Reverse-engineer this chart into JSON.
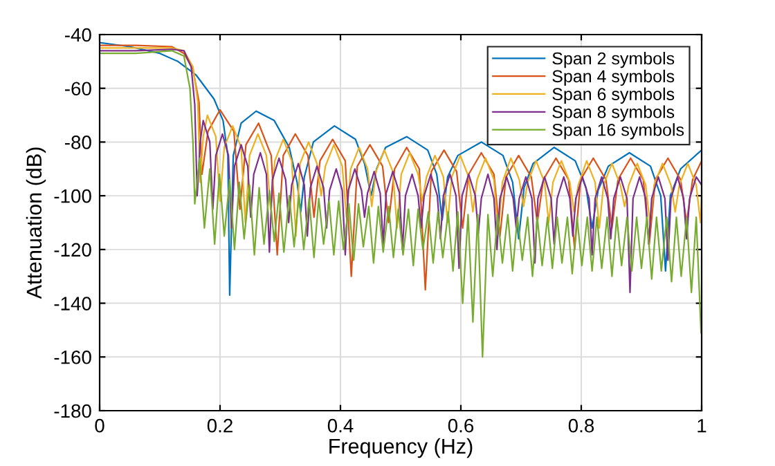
{
  "chart_data": {
    "type": "line",
    "xlabel": "Frequency (Hz)",
    "ylabel": "Attenuation (dB)",
    "xlim": [
      0,
      1
    ],
    "xticks": [
      0,
      0.2,
      0.4,
      0.6,
      0.8,
      1
    ],
    "ylim": [
      -180,
      -40
    ],
    "yticks": [
      -180,
      -160,
      -140,
      -120,
      -100,
      -80,
      -60,
      -40
    ],
    "grid": true,
    "legend": "top right",
    "line_style": "solid",
    "marker": "none",
    "series": [
      {
        "name": "Span 2 symbols",
        "color": "#0072bd",
        "x": [
          0,
          0.05,
          0.1,
          0.13,
          0.16,
          0.19,
          0.205,
          0.213,
          0.216,
          0.222,
          0.235,
          0.26,
          0.29,
          0.315,
          0.328,
          0.334,
          0.34,
          0.355,
          0.39,
          0.425,
          0.44,
          0.451,
          0.46,
          0.475,
          0.51,
          0.545,
          0.56,
          0.569,
          0.578,
          0.595,
          0.634,
          0.67,
          0.686,
          0.696,
          0.705,
          0.72,
          0.755,
          0.79,
          0.808,
          0.818,
          0.828,
          0.845,
          0.88,
          0.915,
          0.932,
          0.94,
          0.948,
          0.965,
          1.0
        ],
        "values": [
          -43,
          -44.5,
          -47,
          -50,
          -55,
          -64,
          -72,
          -85,
          -137,
          -85,
          -73,
          -68.5,
          -72,
          -82,
          -95,
          -106,
          -93,
          -80,
          -74,
          -79,
          -88,
          -100,
          -90,
          -82,
          -78,
          -83,
          -92,
          -109,
          -93,
          -85,
          -80,
          -85,
          -95,
          -116,
          -97,
          -88,
          -82,
          -87,
          -97,
          -112,
          -98,
          -89,
          -84,
          -89,
          -100,
          -128,
          -100,
          -90,
          -83
        ]
      },
      {
        "name": "Span 4 symbols",
        "color": "#d95319",
        "x": [
          0,
          0.06,
          0.12,
          0.14,
          0.155,
          0.165,
          0.17,
          0.18,
          0.2,
          0.223,
          0.233,
          0.243,
          0.264,
          0.285,
          0.295,
          0.305,
          0.325,
          0.346,
          0.356,
          0.366,
          0.387,
          0.408,
          0.418,
          0.428,
          0.449,
          0.47,
          0.48,
          0.49,
          0.51,
          0.531,
          0.541,
          0.551,
          0.572,
          0.593,
          0.603,
          0.613,
          0.634,
          0.655,
          0.665,
          0.675,
          0.696,
          0.717,
          0.727,
          0.737,
          0.758,
          0.779,
          0.789,
          0.799,
          0.82,
          0.841,
          0.851,
          0.861,
          0.882,
          0.903,
          0.913,
          0.923,
          0.944,
          0.965,
          0.975,
          0.985,
          1.0
        ],
        "values": [
          -44,
          -44,
          -44.5,
          -47,
          -53,
          -65,
          -92,
          -76,
          -68,
          -76,
          -105,
          -81,
          -73,
          -85,
          -122,
          -85,
          -77,
          -85,
          -108,
          -87,
          -79,
          -87,
          -130,
          -89,
          -81,
          -89,
          -110,
          -90,
          -82,
          -90,
          -135,
          -91,
          -83,
          -91,
          -112,
          -92,
          -84,
          -92,
          -115,
          -93,
          -85,
          -93,
          -110,
          -94,
          -86,
          -94,
          -120,
          -94,
          -86,
          -94,
          -112,
          -94,
          -86,
          -94,
          -118,
          -94,
          -86,
          -94,
          -110,
          -94,
          -87
        ]
      },
      {
        "name": "Span 6 symbols",
        "color": "#edb120",
        "x": [
          0,
          0.06,
          0.12,
          0.14,
          0.155,
          0.163,
          0.167,
          0.172,
          0.179,
          0.193,
          0.2,
          0.207,
          0.221,
          0.235,
          0.242,
          0.249,
          0.263,
          0.277,
          0.284,
          0.291,
          0.305,
          0.319,
          0.326,
          0.333,
          0.347,
          0.361,
          0.368,
          0.375,
          0.389,
          0.403,
          0.41,
          0.417,
          0.431,
          0.445,
          0.452,
          0.459,
          0.473,
          0.487,
          0.494,
          0.501,
          0.515,
          0.529,
          0.536,
          0.543,
          0.557,
          0.571,
          0.578,
          0.585,
          0.599,
          0.613,
          0.62,
          0.627,
          0.641,
          0.655,
          0.662,
          0.669,
          0.683,
          0.697,
          0.704,
          0.711,
          0.725,
          0.739,
          0.746,
          0.753,
          0.767,
          0.781,
          0.788,
          0.795,
          0.809,
          0.823,
          0.83,
          0.837,
          0.851,
          0.865,
          0.872,
          0.879,
          0.893,
          0.907,
          0.914,
          0.921,
          0.935,
          0.949,
          0.956,
          0.963,
          0.977,
          0.991,
          0.998,
          1.0
        ],
        "values": [
          -45,
          -45,
          -45,
          -46,
          -52,
          -65,
          -95,
          -78,
          -70,
          -78,
          -102,
          -82,
          -74,
          -82,
          -110,
          -85,
          -77,
          -85,
          -105,
          -87,
          -79,
          -87,
          -115,
          -88,
          -80,
          -88,
          -100,
          -89,
          -81,
          -89,
          -108,
          -90,
          -82,
          -90,
          -104,
          -91,
          -83,
          -91,
          -112,
          -92,
          -84,
          -92,
          -102,
          -93,
          -85,
          -93,
          -110,
          -93,
          -85,
          -93,
          -106,
          -94,
          -86,
          -94,
          -114,
          -95,
          -86,
          -94,
          -104,
          -95,
          -87,
          -95,
          -110,
          -95,
          -87,
          -95,
          -106,
          -96,
          -87,
          -95,
          -112,
          -96,
          -88,
          -96,
          -104,
          -96,
          -88,
          -96,
          -110,
          -96,
          -88,
          -96,
          -106,
          -96,
          -88,
          -96,
          -110,
          -100
        ]
      },
      {
        "name": "Span 8 symbols",
        "color": "#7e2f8e",
        "x": [
          0,
          0.06,
          0.12,
          0.14,
          0.152,
          0.158,
          0.162,
          0.167,
          0.172,
          0.183,
          0.188,
          0.193,
          0.204,
          0.214,
          0.219,
          0.224,
          0.235,
          0.246,
          0.251,
          0.256,
          0.267,
          0.277,
          0.282,
          0.287,
          0.298,
          0.309,
          0.314,
          0.319,
          0.33,
          0.34,
          0.345,
          0.35,
          0.361,
          0.372,
          0.377,
          0.382,
          0.393,
          0.403,
          0.408,
          0.413,
          0.424,
          0.435,
          0.44,
          0.445,
          0.456,
          0.466,
          0.471,
          0.476,
          0.487,
          0.498,
          0.503,
          0.508,
          0.519,
          0.529,
          0.534,
          0.539,
          0.55,
          0.561,
          0.566,
          0.571,
          0.582,
          0.592,
          0.597,
          0.602,
          0.613,
          0.624,
          0.629,
          0.634,
          0.645,
          0.655,
          0.66,
          0.665,
          0.676,
          0.687,
          0.692,
          0.697,
          0.708,
          0.718,
          0.723,
          0.728,
          0.739,
          0.75,
          0.755,
          0.76,
          0.771,
          0.781,
          0.786,
          0.791,
          0.802,
          0.813,
          0.818,
          0.823,
          0.834,
          0.844,
          0.849,
          0.854,
          0.865,
          0.876,
          0.881,
          0.886,
          0.897,
          0.907,
          0.912,
          0.917,
          0.928,
          0.939,
          0.944,
          0.949,
          0.96,
          0.97,
          0.975,
          0.98,
          0.991,
          1.0
        ],
        "values": [
          -46,
          -46,
          -45.5,
          -46,
          -52,
          -66,
          -100,
          -80,
          -72,
          -80,
          -105,
          -85,
          -77,
          -85,
          -112,
          -89,
          -81,
          -89,
          -108,
          -92,
          -84,
          -92,
          -121,
          -94,
          -86,
          -94,
          -110,
          -96,
          -88,
          -96,
          -115,
          -97,
          -89,
          -97,
          -112,
          -98,
          -90,
          -98,
          -122,
          -98,
          -90,
          -98,
          -108,
          -99,
          -91,
          -99,
          -118,
          -99,
          -91,
          -99,
          -120,
          -100,
          -92,
          -100,
          -112,
          -100,
          -92,
          -100,
          -116,
          -100,
          -92,
          -100,
          -127,
          -100,
          -92,
          -100,
          -114,
          -101,
          -92,
          -101,
          -120,
          -101,
          -93,
          -101,
          -112,
          -101,
          -93,
          -101,
          -125,
          -101,
          -93,
          -101,
          -118,
          -101,
          -93,
          -101,
          -115,
          -101,
          -93,
          -101,
          -122,
          -101,
          -93,
          -101,
          -116,
          -101,
          -93,
          -101,
          -136,
          -101,
          -93,
          -101,
          -118,
          -101,
          -93,
          -101,
          -124,
          -101,
          -93,
          -101,
          -116,
          -101,
          -93,
          -96
        ]
      },
      {
        "name": "Span 16 symbols",
        "color": "#77ac30",
        "x": [
          0,
          0.06,
          0.12,
          0.14,
          0.15,
          0.155,
          0.158,
          0.166,
          0.174,
          0.183,
          0.191,
          0.199,
          0.207,
          0.216,
          0.224,
          0.232,
          0.24,
          0.249,
          0.257,
          0.265,
          0.273,
          0.282,
          0.29,
          0.298,
          0.306,
          0.315,
          0.323,
          0.331,
          0.339,
          0.348,
          0.356,
          0.364,
          0.372,
          0.381,
          0.389,
          0.397,
          0.405,
          0.414,
          0.422,
          0.43,
          0.438,
          0.447,
          0.455,
          0.463,
          0.471,
          0.48,
          0.488,
          0.496,
          0.504,
          0.513,
          0.521,
          0.529,
          0.537,
          0.546,
          0.554,
          0.562,
          0.57,
          0.579,
          0.587,
          0.595,
          0.603,
          0.612,
          0.62,
          0.628,
          0.636,
          0.645,
          0.653,
          0.661,
          0.669,
          0.678,
          0.686,
          0.694,
          0.702,
          0.711,
          0.719,
          0.727,
          0.735,
          0.744,
          0.752,
          0.76,
          0.768,
          0.777,
          0.785,
          0.793,
          0.801,
          0.81,
          0.818,
          0.826,
          0.834,
          0.843,
          0.851,
          0.859,
          0.867,
          0.876,
          0.884,
          0.892,
          0.9,
          0.909,
          0.917,
          0.925,
          0.933,
          0.942,
          0.95,
          0.958,
          0.966,
          0.975,
          0.983,
          0.991,
          0.999
        ],
        "values": [
          -47,
          -47,
          -46,
          -48,
          -60,
          -80,
          -103,
          -86,
          -112,
          -90,
          -118,
          -92,
          -115,
          -94,
          -120,
          -95,
          -116,
          -96,
          -122,
          -97,
          -118,
          -98,
          -117,
          -99,
          -121,
          -100,
          -119,
          -100,
          -120,
          -101,
          -123,
          -101,
          -118,
          -102,
          -122,
          -102,
          -120,
          -103,
          -124,
          -103,
          -119,
          -104,
          -125,
          -104,
          -121,
          -104,
          -123,
          -105,
          -122,
          -105,
          -126,
          -105,
          -120,
          -106,
          -125,
          -106,
          -123,
          -106,
          -128,
          -106,
          -140,
          -107,
          -147,
          -107,
          -160,
          -107,
          -130,
          -107,
          -125,
          -107,
          -128,
          -108,
          -124,
          -108,
          -130,
          -108,
          -126,
          -108,
          -127,
          -108,
          -125,
          -108,
          -129,
          -108,
          -126,
          -108,
          -128,
          -108,
          -127,
          -108,
          -130,
          -108,
          -126,
          -108,
          -128,
          -108,
          -127,
          -108,
          -131,
          -108,
          -128,
          -108,
          -132,
          -108,
          -130,
          -108,
          -136,
          -108,
          -151
        ]
      }
    ]
  }
}
